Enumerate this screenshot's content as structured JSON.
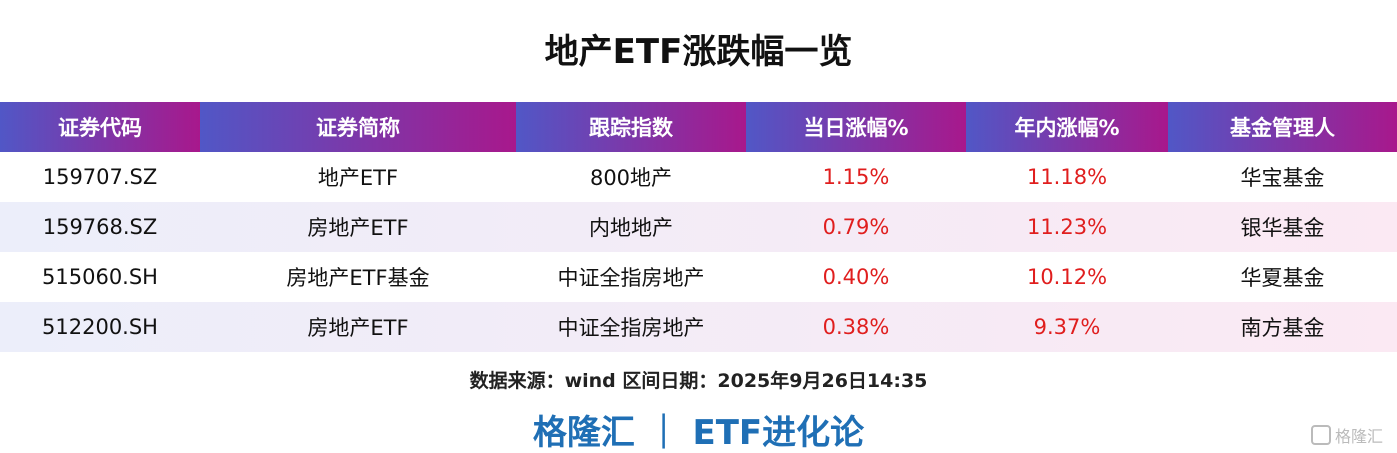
{
  "title": "地产ETF涨跌幅一览",
  "table": {
    "header": [
      "证券代码",
      "证券简称",
      "跟踪指数",
      "当日涨幅%",
      "年内涨幅%",
      "基金管理人"
    ],
    "rows": [
      [
        "159707.SZ",
        "地产ETF",
        "800地产",
        "1.15%",
        "11.18%",
        "华宝基金"
      ],
      [
        "159768.SZ",
        "房地产ETF",
        "内地地产",
        "0.79%",
        "11.23%",
        "银华基金"
      ],
      [
        "515060.SH",
        "房地产ETF基金",
        "中证全指房地产",
        "0.40%",
        "10.12%",
        "华夏基金"
      ],
      [
        "512200.SH",
        "房地产ETF",
        "中证全指房地产",
        "0.38%",
        "9.37%",
        "南方基金"
      ]
    ]
  },
  "source": "数据来源：wind  区间日期：2025年9月26日14:35",
  "footer": "格隆汇 ｜ ETF进化论",
  "watermark": "格隆汇"
}
